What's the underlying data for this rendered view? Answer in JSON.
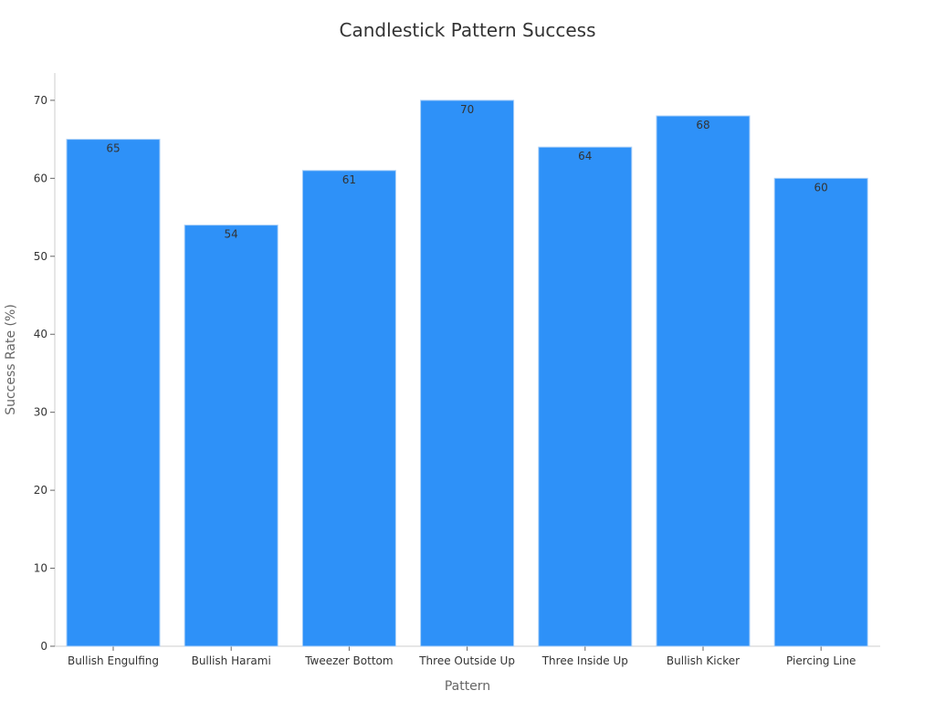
{
  "chart_data": {
    "type": "bar",
    "title": "Candlestick Pattern Success",
    "xlabel": "Pattern",
    "ylabel": "Success Rate (%)",
    "categories": [
      "Bullish Engulfing",
      "Bullish Harami",
      "Tweezer Bottom",
      "Three Outside Up",
      "Three Inside Up",
      "Bullish Kicker",
      "Piercing Line"
    ],
    "values": [
      65,
      54,
      61,
      70,
      64,
      68,
      60
    ],
    "ylim": [
      0,
      73.5
    ],
    "yticks": [
      0,
      10,
      20,
      30,
      40,
      50,
      60,
      70
    ],
    "grid": false,
    "bar_color": "#2e91f8",
    "bar_edge_color": "#a9cff7"
  }
}
